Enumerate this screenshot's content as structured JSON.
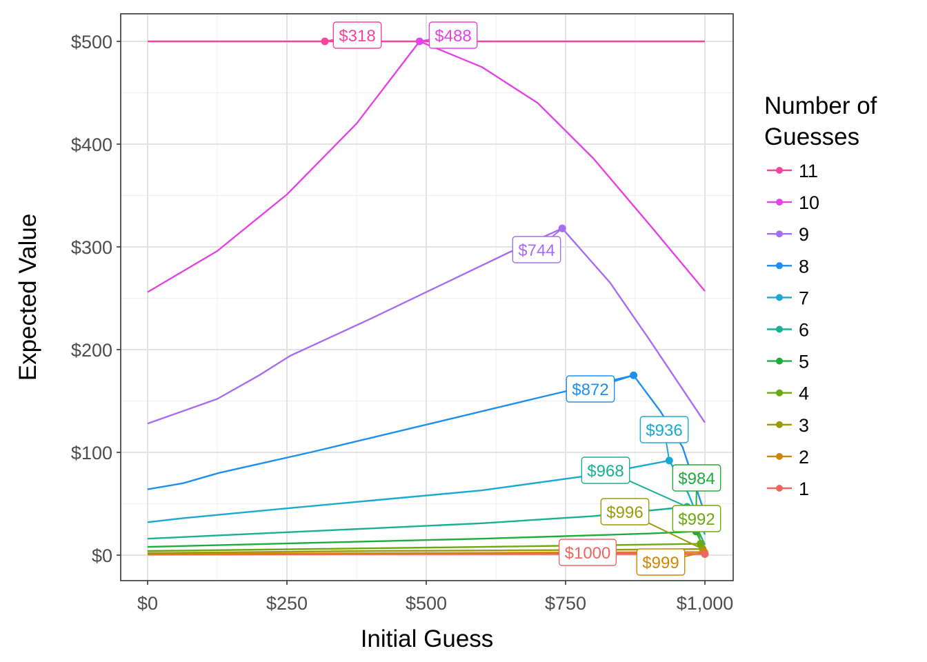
{
  "chart_data": {
    "type": "line",
    "title": "",
    "xlabel": "Initial Guess",
    "ylabel": "Expected Value",
    "xlim": [
      0,
      1000
    ],
    "ylim": [
      0,
      500
    ],
    "x_ticks": [
      0,
      250,
      500,
      750,
      1000
    ],
    "x_tick_labels": [
      "$0",
      "$250",
      "$500",
      "$750",
      "$1,000"
    ],
    "y_ticks": [
      0,
      100,
      200,
      300,
      400,
      500
    ],
    "y_tick_labels": [
      "$0",
      "$100",
      "$200",
      "$300",
      "$400",
      "$500"
    ],
    "grid": true,
    "legend": {
      "title_lines": [
        "Number of",
        "Guesses"
      ],
      "position": "right"
    },
    "series": [
      {
        "name": "11",
        "color": "#F8449E",
        "points": [
          [
            0,
            500
          ],
          [
            1000,
            500
          ]
        ],
        "optimum": {
          "x": 318,
          "y": 500
        },
        "callout": "$318"
      },
      {
        "name": "10",
        "color": "#E442E4",
        "points": [
          [
            0,
            256
          ],
          [
            125,
            296
          ],
          [
            250,
            351
          ],
          [
            375,
            420
          ],
          [
            488,
            500
          ],
          [
            600,
            475
          ],
          [
            700,
            440
          ],
          [
            800,
            386
          ],
          [
            900,
            322
          ],
          [
            1000,
            257
          ]
        ],
        "optimum": {
          "x": 488,
          "y": 500
        },
        "callout": "$488"
      },
      {
        "name": "9",
        "color": "#A56DF6",
        "points": [
          [
            0,
            128
          ],
          [
            125,
            152
          ],
          [
            200,
            175
          ],
          [
            256,
            194
          ],
          [
            400,
            230
          ],
          [
            500,
            256
          ],
          [
            650,
            295
          ],
          [
            744,
            318
          ],
          [
            830,
            265
          ],
          [
            900,
            210
          ],
          [
            1000,
            129
          ]
        ],
        "optimum": {
          "x": 744,
          "y": 318
        },
        "callout": "$744"
      },
      {
        "name": "8",
        "color": "#1E8FEE",
        "points": [
          [
            0,
            64
          ],
          [
            64,
            70
          ],
          [
            128,
            80
          ],
          [
            300,
            101
          ],
          [
            500,
            127
          ],
          [
            700,
            153
          ],
          [
            872,
            175
          ],
          [
            920,
            140
          ],
          [
            960,
            105
          ],
          [
            1000,
            40
          ]
        ],
        "optimum": {
          "x": 872,
          "y": 175
        },
        "callout": "$872"
      },
      {
        "name": "7",
        "color": "#1AAAD1",
        "points": [
          [
            0,
            32
          ],
          [
            64,
            36
          ],
          [
            200,
            43
          ],
          [
            400,
            53
          ],
          [
            600,
            63
          ],
          [
            800,
            78
          ],
          [
            936,
            92
          ],
          [
            970,
            60
          ],
          [
            1000,
            20
          ]
        ],
        "optimum": {
          "x": 936,
          "y": 92
        },
        "callout": "$936"
      },
      {
        "name": "6",
        "color": "#17B093",
        "points": [
          [
            0,
            16
          ],
          [
            200,
            21
          ],
          [
            400,
            26
          ],
          [
            600,
            31
          ],
          [
            800,
            38
          ],
          [
            968,
            47
          ],
          [
            1000,
            10
          ]
        ],
        "optimum": {
          "x": 968,
          "y": 47
        },
        "callout": "$968"
      },
      {
        "name": "5",
        "color": "#1DAD3C",
        "points": [
          [
            0,
            8
          ],
          [
            300,
            12
          ],
          [
            600,
            16
          ],
          [
            900,
            21
          ],
          [
            984,
            23
          ],
          [
            1000,
            5
          ]
        ],
        "optimum": {
          "x": 984,
          "y": 23
        },
        "callout": "$984"
      },
      {
        "name": "4",
        "color": "#6CA90E",
        "points": [
          [
            0,
            4
          ],
          [
            300,
            6
          ],
          [
            600,
            8
          ],
          [
            992,
            11
          ],
          [
            1000,
            3
          ]
        ],
        "optimum": {
          "x": 992,
          "y": 11
        },
        "callout": "$992"
      },
      {
        "name": "3",
        "color": "#9B9A0A",
        "points": [
          [
            0,
            2
          ],
          [
            400,
            4
          ],
          [
            800,
            5
          ],
          [
            996,
            6
          ],
          [
            1000,
            2
          ]
        ],
        "optimum": {
          "x": 996,
          "y": 6
        },
        "callout": "$996"
      },
      {
        "name": "2",
        "color": "#D08507",
        "points": [
          [
            0,
            1
          ],
          [
            500,
            2
          ],
          [
            999,
            3
          ],
          [
            1000,
            1
          ]
        ],
        "optimum": {
          "x": 999,
          "y": 3
        },
        "callout": "$999"
      },
      {
        "name": "1",
        "color": "#EF6660",
        "points": [
          [
            0,
            0.5
          ],
          [
            500,
            1
          ],
          [
            1000,
            1
          ]
        ],
        "optimum": {
          "x": 1000,
          "y": 1
        },
        "callout": "$1000"
      }
    ]
  }
}
